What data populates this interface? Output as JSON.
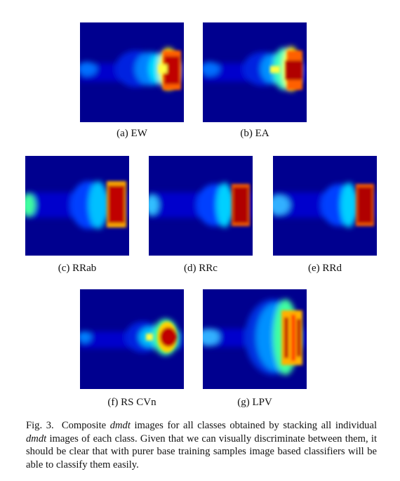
{
  "panels": [
    {
      "key": "a",
      "label": "(a) EW"
    },
    {
      "key": "b",
      "label": "(b) EA"
    },
    {
      "key": "c",
      "label": "(c) RRab"
    },
    {
      "key": "d",
      "label": "(d) RRc"
    },
    {
      "key": "e",
      "label": "(e) RRd"
    },
    {
      "key": "f",
      "label": "(f) RS CVn"
    },
    {
      "key": "g",
      "label": "(g) LPV"
    }
  ],
  "caption": {
    "prefix": "Fig. 3.",
    "part1": "Composite ",
    "em1": "dmdt",
    "part2": " images for all classes obtained by stacking all individual ",
    "em2": "dmdt",
    "part3": " images of each class. Given that we can visually discriminate between them, it should be clear that with purer base training samples image based classifiers will be able to classify them easily."
  },
  "colors": {
    "background_blue": "#00008f",
    "jet_colormap": [
      "#00008f",
      "#0000ff",
      "#0080ff",
      "#00ffff",
      "#80ff80",
      "#ffff00",
      "#ff8000",
      "#ff0000",
      "#800000"
    ]
  }
}
